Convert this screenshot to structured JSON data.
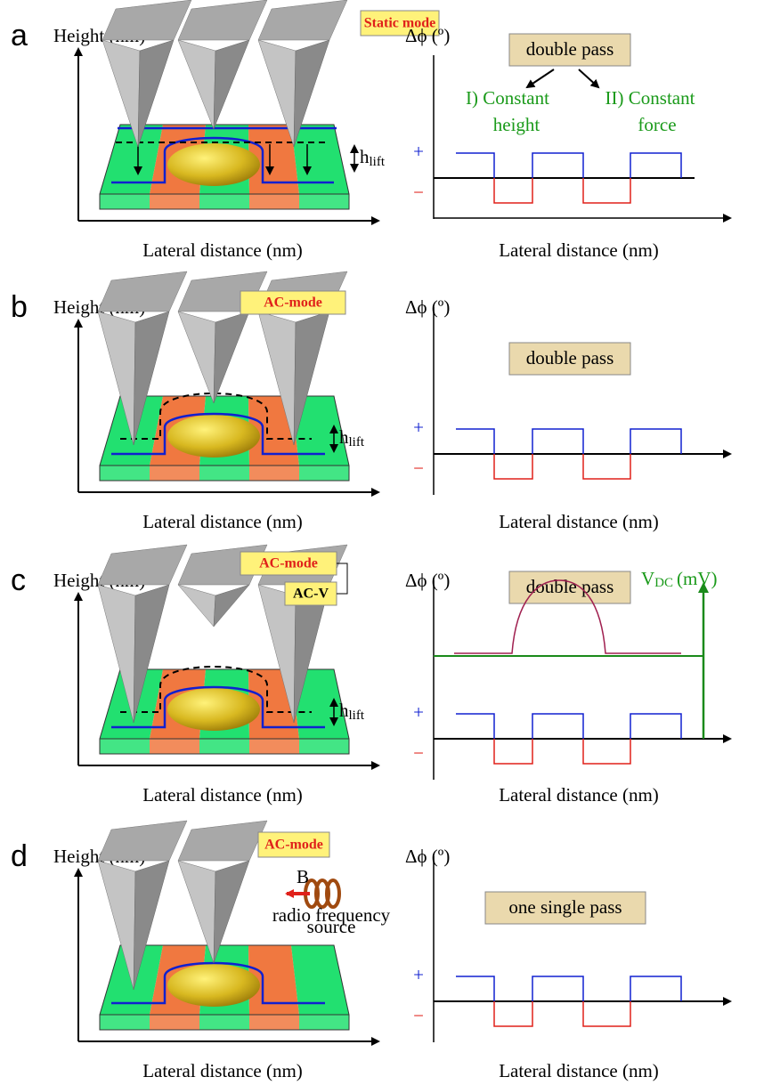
{
  "panels": [
    {
      "letter": "a",
      "height_label": "Height (nm)",
      "modes": [
        "Static mode"
      ],
      "h": "h",
      "h_sub": "lift",
      "lateral_left": "Lateral distance (nm)",
      "phase_label": "Δϕ (º)",
      "pass": "double pass",
      "branches": [
        [
          "I) Constant",
          "height"
        ],
        [
          "II) Constant",
          "force"
        ]
      ],
      "plus": "+",
      "minus": "−",
      "lateral_right": "Lateral distance (nm)"
    },
    {
      "letter": "b",
      "height_label": "Height (nm)",
      "modes": [
        "AC-mode"
      ],
      "h": "h",
      "h_sub": "lift",
      "lateral_left": "Lateral distance (nm)",
      "phase_label": "Δϕ (º)",
      "pass": "double pass",
      "plus": "+",
      "minus": "−",
      "lateral_right": "Lateral distance (nm)"
    },
    {
      "letter": "c",
      "height_label": "Height (nm)",
      "modes": [
        "AC-mode",
        "AC-V"
      ],
      "h": "h",
      "h_sub": "lift",
      "lateral_left": "Lateral distance (nm)",
      "phase_label": "Δϕ (º)",
      "pass": "double pass",
      "vdc": {
        "v": "V",
        "sub": "DC",
        "unit": "(mV)"
      },
      "plus": "+",
      "minus": "−",
      "lateral_right": "Lateral distance (nm)"
    },
    {
      "letter": "d",
      "height_label": "Height (nm)",
      "modes": [
        "AC-mode"
      ],
      "rf": {
        "b": "B",
        "source": [
          "radio frequency",
          "source"
        ]
      },
      "lateral_left": "Lateral distance (nm)",
      "phase_label": "Δϕ (º)",
      "pass": "one single pass",
      "plus": "+",
      "minus": "−",
      "lateral_right": "Lateral distance (nm)"
    }
  ]
}
